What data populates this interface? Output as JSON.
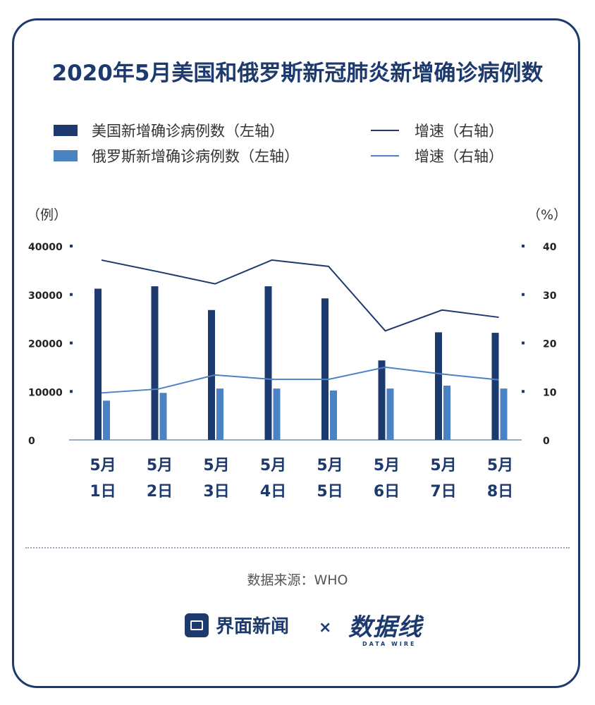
{
  "title": "2020年5月美国和俄罗斯新冠肺炎新增确诊病例数",
  "legend": [
    {
      "label": "美国新增确诊病例数（左轴）",
      "kind": "bar",
      "color": "#1d3a6e"
    },
    {
      "label": "俄罗斯新增确诊病例数（左轴）",
      "kind": "bar",
      "color": "#4a82c4"
    },
    {
      "label": "增速（右轴）",
      "kind": "line",
      "color": "#1d3a6e"
    },
    {
      "label": "增速（右轴）",
      "kind": "line",
      "color": "#4a82c4"
    }
  ],
  "axis_units": {
    "left": "（例）",
    "right": "（%）"
  },
  "source": "数据来源：WHO",
  "footer": {
    "brand": "界面新闻",
    "times": "×",
    "partner": "数据线",
    "partner_sub": "DATA WIRE"
  },
  "chart_data": {
    "type": "bar",
    "categories": [
      [
        "5月",
        "1日"
      ],
      [
        "5月",
        "2日"
      ],
      [
        "5月",
        "3日"
      ],
      [
        "5月",
        "4日"
      ],
      [
        "5月",
        "5日"
      ],
      [
        "5月",
        "6日"
      ],
      [
        "5月",
        "7日"
      ],
      [
        "5月",
        "8日"
      ]
    ],
    "series": [
      {
        "name": "美国新增确诊病例数（左轴）",
        "type": "bar",
        "axis": "left",
        "color": "#1d3a6e",
        "values": [
          31200,
          31700,
          26800,
          31700,
          29200,
          16400,
          22200,
          22100
        ]
      },
      {
        "name": "俄罗斯新增确诊病例数（左轴）",
        "type": "bar",
        "axis": "left",
        "color": "#4a82c4",
        "values": [
          8100,
          9700,
          10600,
          10600,
          10200,
          10600,
          11200,
          10600
        ]
      },
      {
        "name": "增速（右轴）",
        "type": "line",
        "axis": "right",
        "color": "#1d3a6e",
        "values": [
          37.1,
          34.7,
          32.2,
          37.1,
          35.8,
          22.5,
          26.8,
          25.3
        ]
      },
      {
        "name": "增速（右轴）",
        "type": "line",
        "axis": "right",
        "color": "#4a82c4",
        "values": [
          9.7,
          10.5,
          13.4,
          12.5,
          12.5,
          15.0,
          13.6,
          12.4
        ]
      }
    ],
    "ylim_left": [
      0,
      40000
    ],
    "yticks_left": [
      "40000",
      "30000",
      "20000",
      "10000",
      "0"
    ],
    "ylim_right": [
      0,
      40
    ],
    "yticks_right": [
      "40",
      "30",
      "20",
      "10",
      "0"
    ],
    "grid": false
  }
}
